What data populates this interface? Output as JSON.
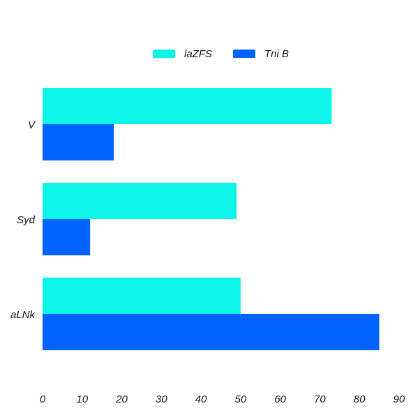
{
  "chart_data": {
    "type": "bar",
    "orientation": "horizontal",
    "categories": [
      "V",
      "Syd",
      "aLNk"
    ],
    "series": [
      {
        "name": "laZFS",
        "color": "#0cf5e8",
        "values": [
          73,
          49,
          50
        ]
      },
      {
        "name": "Tni B",
        "color": "#0062ff",
        "values": [
          18,
          12,
          85
        ]
      }
    ],
    "xlim": [
      0,
      90
    ],
    "xticks": [
      0,
      10,
      20,
      30,
      40,
      50,
      60,
      70,
      80,
      90
    ],
    "grid": false,
    "legend_position": "top-center"
  }
}
